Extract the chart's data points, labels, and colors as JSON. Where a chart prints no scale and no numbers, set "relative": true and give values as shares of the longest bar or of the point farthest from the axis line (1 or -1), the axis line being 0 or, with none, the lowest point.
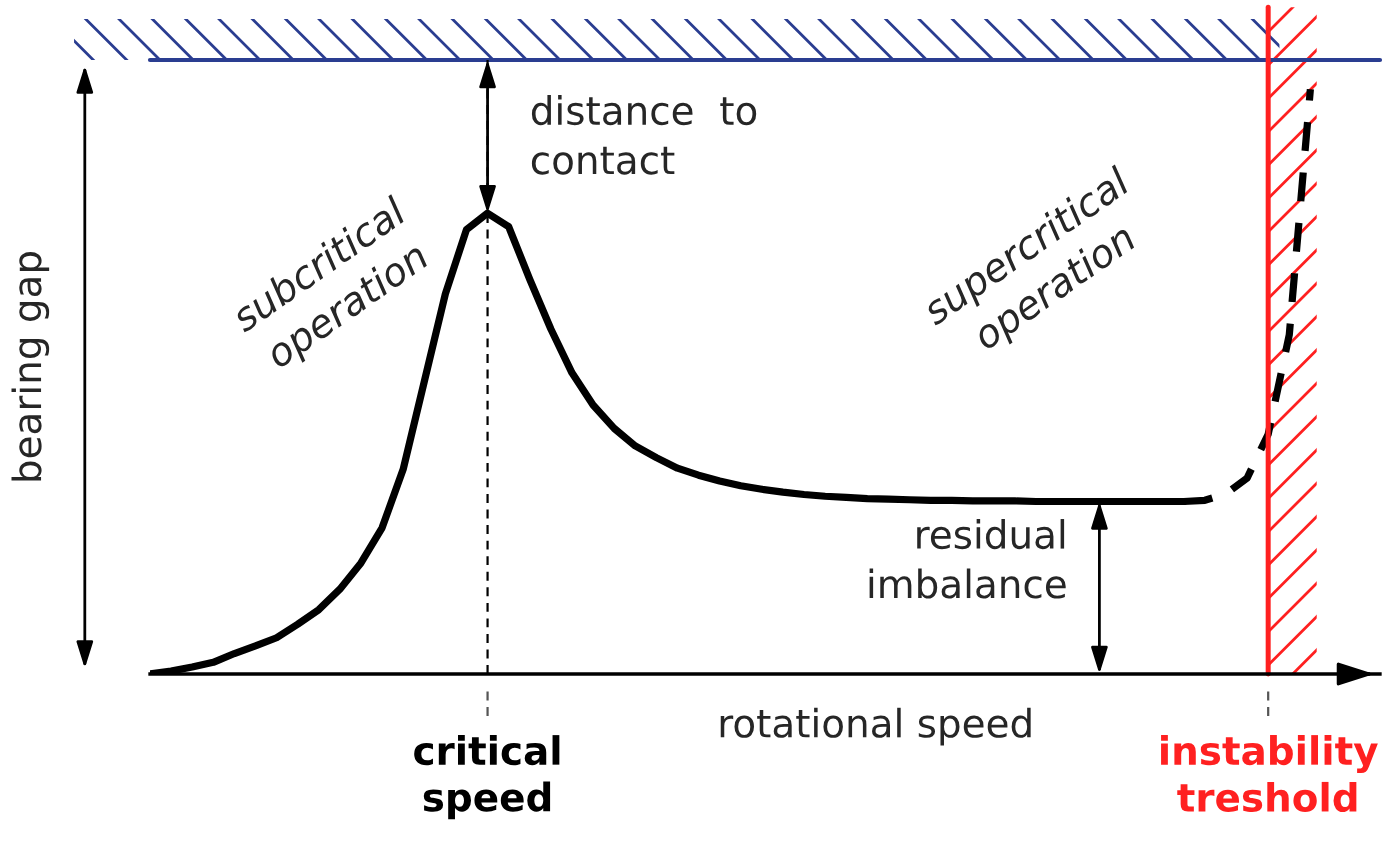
{
  "chart_data": {
    "type": "line",
    "relative": true,
    "xlabel": "rotational speed",
    "ylabel": "bearing gap",
    "categories": [
      null,
      null,
      null,
      null,
      null,
      null,
      null,
      null,
      null,
      null,
      null,
      null,
      null,
      null,
      null,
      null,
      "critical\nspeed",
      null,
      null,
      null,
      null,
      null,
      null,
      null,
      null,
      null,
      null,
      null,
      null,
      null,
      null,
      null,
      null,
      null,
      null,
      null,
      null,
      null,
      null,
      null,
      null,
      null,
      null,
      null,
      null,
      null,
      null,
      null,
      null,
      null,
      null,
      null,
      null,
      "instability\ntreshold",
      null,
      null
    ],
    "series": [
      {
        "color": "#000000",
        "line_style": "solid",
        "values": [
          0,
          0.005,
          0.012,
          0.02,
          0.035,
          0.048,
          0.062,
          0.085,
          0.11,
          0.145,
          0.19,
          0.25,
          0.35,
          0.5,
          0.65,
          0.76,
          0.788,
          0.765,
          0.675,
          0.59,
          0.515,
          0.46,
          0.42,
          0.39,
          0.37,
          0.352,
          0.34,
          0.33,
          0.322,
          0.316,
          0.311,
          0.307,
          0.304,
          0.302,
          0.3,
          0.299,
          0.298,
          0.297,
          0.297,
          0.296,
          0.296,
          0.296,
          0.295,
          0.295,
          0.295,
          0.295,
          0.295,
          0.295,
          0.295,
          0.295,
          null,
          null,
          null,
          null,
          null,
          null
        ]
      },
      {
        "color": "#000000",
        "line_style": "dashed",
        "values": [
          null,
          null,
          null,
          null,
          null,
          null,
          null,
          null,
          null,
          null,
          null,
          null,
          null,
          null,
          null,
          null,
          null,
          null,
          null,
          null,
          null,
          null,
          null,
          null,
          null,
          null,
          null,
          null,
          null,
          null,
          null,
          null,
          null,
          null,
          null,
          null,
          null,
          null,
          null,
          null,
          null,
          null,
          null,
          null,
          null,
          null,
          null,
          null,
          null,
          0.295,
          0.297,
          0.308,
          0.335,
          0.41,
          0.58,
          1.0
        ]
      }
    ],
    "ref_lines": [
      {
        "axis": "x",
        "value": "critical\nspeed",
        "color": "#000000",
        "line_style": "dashed"
      },
      {
        "axis": "x",
        "value": "instability\ntreshold",
        "color": "#ff2020",
        "line_style": "solid"
      }
    ],
    "annotations": [
      "distance  to\ncontact",
      "residual\nimbalance",
      "subcritical\noperation",
      "supercritical\noperation"
    ]
  }
}
